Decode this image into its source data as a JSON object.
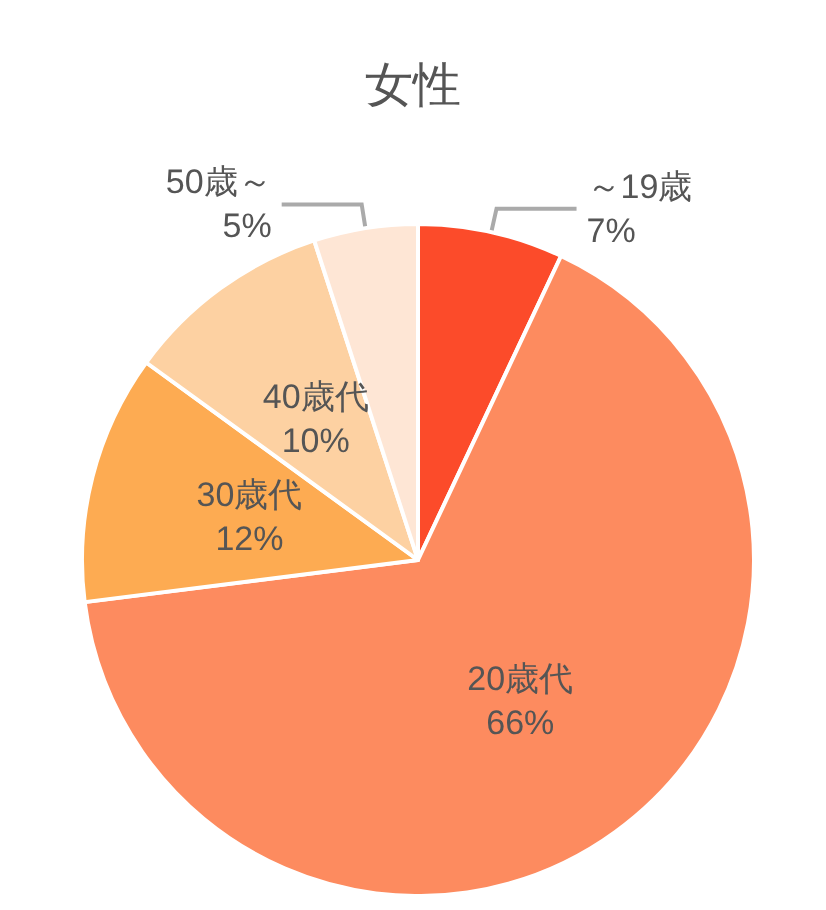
{
  "chart_data": {
    "type": "pie",
    "title": "女性",
    "categories": [
      "～19歳",
      "20歳代",
      "30歳代",
      "40歳代",
      "50歳～"
    ],
    "values": [
      7,
      66,
      12,
      10,
      5
    ],
    "value_labels": [
      "7%",
      "66%",
      "12%",
      "10%",
      "5%"
    ],
    "colors": [
      "#fc4b2a",
      "#fd8b5f",
      "#fdab52",
      "#fdd1a2",
      "#fee6d5"
    ],
    "legend": false
  }
}
